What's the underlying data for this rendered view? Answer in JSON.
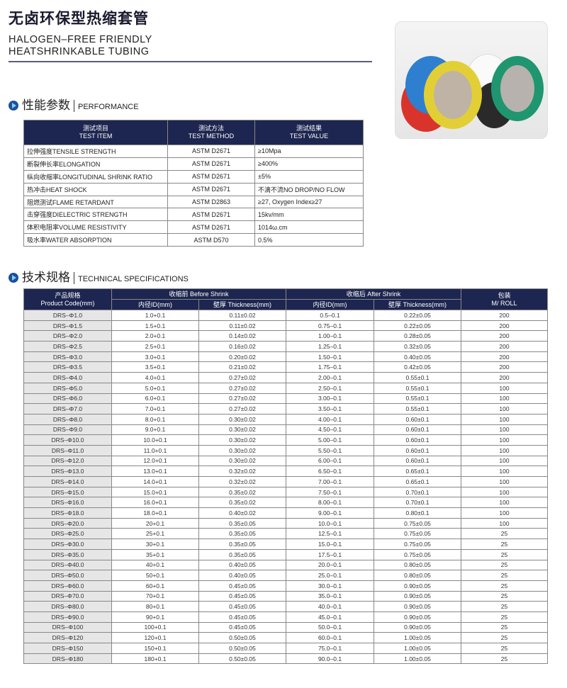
{
  "header": {
    "title_cn": "无卤环保型热缩套管",
    "title_en_line1": "HALOGEN–FREE FRIENDLY",
    "title_en_line2": "HEATSHRINKABLE TUBING"
  },
  "performance": {
    "heading_cn": "性能参数",
    "heading_en": "PERFORMANCE",
    "icon": "arrow-circle-icon",
    "headers": [
      {
        "cn": "测试项目",
        "en": "TEST ITEM"
      },
      {
        "cn": "测试方法",
        "en": "TEST METHOD"
      },
      {
        "cn": "测试结果",
        "en": "TEST VALUE"
      }
    ],
    "rows": [
      [
        "拉伸强度TENSILE STRENGTH",
        "ASTM D2671",
        "≥10Mpa"
      ],
      [
        "断裂伸长率ELONGATION",
        "ASTM D2671",
        "≥400%"
      ],
      [
        "纵向收缩率LONGITUDINAL SHRINK RATIO",
        "ASTM D2671",
        "±5%"
      ],
      [
        "热冲击HEAT SHOCK",
        "ASTM D2671",
        "不滴不流NO DROP/NO FLOW"
      ],
      [
        "阻燃测试FLAME RETARDANT",
        "ASTM D2863",
        "≥27, Oxygen Index≥27"
      ],
      [
        "击穿强度DIELECTRIC STRENGTH",
        "ASTM D2671",
        "15kv/mm"
      ],
      [
        "体积电阻率VOLUME RESISTIVITY",
        "ASTM D2671",
        "1014ω.cm"
      ],
      [
        "吸水率WATER ABSORPTION",
        "ASTM D570",
        "0.5%"
      ]
    ]
  },
  "specs": {
    "heading_cn": "技术规格",
    "heading_en": "TECHNICAL SPECIFICATIONS",
    "headers": {
      "code_cn": "产品规格",
      "code_en": "Product Code(mm)",
      "before": "收缩前 Before Shrink",
      "after": "收缩后 After Shrink",
      "id": "内径ID(mm)",
      "thickness": "壁厚 Thickness(mm)",
      "pack_cn": "包装",
      "pack_en": "M/ ROLL"
    },
    "rows": [
      [
        "DRS–Φ1.0",
        "1.0+0.1",
        "0.11±0.02",
        "0.5–0.1",
        "0.22±0.05",
        "200"
      ],
      [
        "DRS–Φ1.5",
        "1.5+0.1",
        "0.11±0.02",
        "0.75–0.1",
        "0.22±0.05",
        "200"
      ],
      [
        "DRS–Φ2.0",
        "2.0+0.1",
        "0.14±0.02",
        "1.00–0.1",
        "0.28±0.05",
        "200"
      ],
      [
        "DRS–Φ2.5",
        "2.5+0.1",
        "0.16±0.02",
        "1.25–0.1",
        "0.32±0.05",
        "200"
      ],
      [
        "DRS–Φ3.0",
        "3.0+0.1",
        "0.20±0.02",
        "1.50–0.1",
        "0.40±0.05",
        "200"
      ],
      [
        "DRS–Φ3.5",
        "3.5+0.1",
        "0.21±0.02",
        "1.75–0.1",
        "0.42±0.05",
        "200"
      ],
      [
        "DRS–Φ4.0",
        "4.0+0.1",
        "0.27±0.02",
        "2.00–0.1",
        "0.55±0.1",
        "200"
      ],
      [
        "DRS–Φ5.0",
        "5.0+0.1",
        "0.27±0.02",
        "2.50–0.1",
        "0.55±0.1",
        "100"
      ],
      [
        "DRS–Φ6.0",
        "6.0+0.1",
        "0.27±0.02",
        "3.00–0.1",
        "0.55±0.1",
        "100"
      ],
      [
        "DRS–Φ7.0",
        "7.0+0.1",
        "0.27±0.02",
        "3.50–0.1",
        "0.55±0.1",
        "100"
      ],
      [
        "DRS–Φ8.0",
        "8.0+0.1",
        "0.30±0.02",
        "4.00–0.1",
        "0.60±0.1",
        "100"
      ],
      [
        "DRS–Φ9.0",
        "9.0+0.1",
        "0.30±0.02",
        "4.50–0.1",
        "0.60±0.1",
        "100"
      ],
      [
        "DRS–Φ10.0",
        "10.0+0.1",
        "0.30±0.02",
        "5.00–0.1",
        "0.60±0.1",
        "100"
      ],
      [
        "DRS–Φ11.0",
        "11.0+0.1",
        "0.30±0.02",
        "5.50–0.1",
        "0.60±0.1",
        "100"
      ],
      [
        "DRS–Φ12.0",
        "12.0+0.1",
        "0.30±0.02",
        "6.00–0.1",
        "0.60±0.1",
        "100"
      ],
      [
        "DRS–Φ13.0",
        "13.0+0.1",
        "0.32±0.02",
        "6.50–0.1",
        "0.65±0.1",
        "100"
      ],
      [
        "DRS–Φ14.0",
        "14.0+0.1",
        "0.32±0.02",
        "7.00–0.1",
        "0.65±0.1",
        "100"
      ],
      [
        "DRS–Φ15.0",
        "15.0+0.1",
        "0.35±0.02",
        "7.50–0.1",
        "0.70±0.1",
        "100"
      ],
      [
        "DRS–Φ16.0",
        "16.0+0.1",
        "0.35±0.02",
        "8.00–0.1",
        "0.70±0.1",
        "100"
      ],
      [
        "DRS–Φ18.0",
        "18.0+0.1",
        "0.40±0.02",
        "9.00–0.1",
        "0.80±0.1",
        "100"
      ],
      [
        "DRS–Φ20.0",
        "20+0.1",
        "0.35±0.05",
        "10.0–0.1",
        "0.75±0.05",
        "100"
      ],
      [
        "DRS–Φ25.0",
        "25+0.1",
        "0.35±0.05",
        "12.5–0.1",
        "0.75±0.05",
        "25"
      ],
      [
        "DRS–Φ30.0",
        "30+0.1",
        "0.35±0.05",
        "15.0–0.1",
        "0.75±0.05",
        "25"
      ],
      [
        "DRS–Φ35.0",
        "35+0.1",
        "0.35±0.05",
        "17.5–0.1",
        "0.75±0.05",
        "25"
      ],
      [
        "DRS–Φ40.0",
        "40+0.1",
        "0.40±0.05",
        "20.0–0.1",
        "0.80±0.05",
        "25"
      ],
      [
        "DRS–Φ50.0",
        "50+0.1",
        "0.40±0.05",
        "25.0–0.1",
        "0.80±0.05",
        "25"
      ],
      [
        "DRS–Φ60.0",
        "60+0.1",
        "0.45±0.05",
        "30.0–0.1",
        "0.90±0.05",
        "25"
      ],
      [
        "DRS–Φ70.0",
        "70+0.1",
        "0.45±0.05",
        "35.0–0.1",
        "0.90±0.05",
        "25"
      ],
      [
        "DRS–Φ80.0",
        "80+0.1",
        "0.45±0.05",
        "40.0–0.1",
        "0.90±0.05",
        "25"
      ],
      [
        "DRS–Φ90.0",
        "90+0.1",
        "0.45±0.05",
        "45.0–0.1",
        "0.90±0.05",
        "25"
      ],
      [
        "DRS–Φ100",
        "100+0.1",
        "0.45±0.05",
        "50.0–0.1",
        "0.90±0.05",
        "25"
      ],
      [
        "DRS–Φ120",
        "120+0.1",
        "0.50±0.05",
        "60.0–0.1",
        "1.00±0.05",
        "25"
      ],
      [
        "DRS–Φ150",
        "150+0.1",
        "0.50±0.05",
        "75.0–0.1",
        "1.00±0.05",
        "25"
      ],
      [
        "DRS–Φ180",
        "180+0.1",
        "0.50±0.05",
        "90.0–0.1",
        "1.00±0.05",
        "25"
      ]
    ]
  },
  "colors": {
    "header_bg": "#1d2650",
    "code_cell_bg": "#e6e6e6",
    "accent": "#1e4f9c"
  }
}
